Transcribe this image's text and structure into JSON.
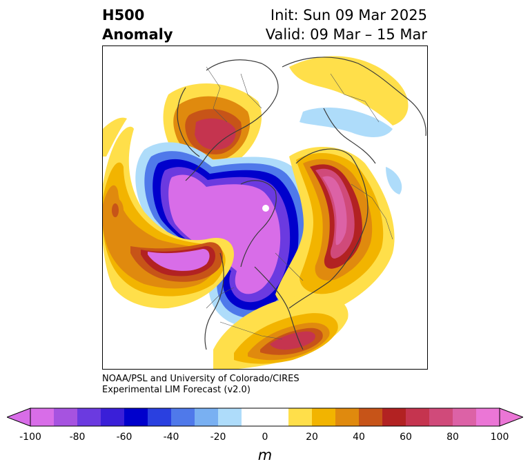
{
  "header": {
    "title_line1": "H500",
    "title_line2": "Anomaly",
    "init_text": "Init: Sun 09 Mar 2025",
    "valid_text": "Valid: 09 Mar – 15 Mar"
  },
  "credit": {
    "line1": "NOAA/PSL and University of Colorado/CIRES",
    "line2": "Experimental LIM Forecast (v2.0)"
  },
  "colorbar": {
    "units": "m",
    "tick_labels": [
      "-100",
      "-80",
      "-60",
      "-40",
      "-20",
      "0",
      "20",
      "40",
      "60",
      "80",
      "100"
    ],
    "colors": [
      "#d86de8",
      "#a653e0",
      "#6b3ae0",
      "#3a1fd8",
      "#0000cc",
      "#2a40e0",
      "#4f79ea",
      "#79b0f2",
      "#aedcfa",
      "#ffffff",
      "#ffffff",
      "#ffdf4a",
      "#f2b400",
      "#e08a0e",
      "#c75418",
      "#b22222",
      "#c5344f",
      "#d04a7a",
      "#dc62a6",
      "#eb76d6"
    ]
  },
  "map": {
    "projection": "north-polar-stereographic",
    "field": "500 hPa geopotential height anomaly",
    "colors": {
      "neg_deep": "#d86de8",
      "neg_1": "#6b3ae0",
      "neg_2": "#0000cc",
      "neg_3": "#4f79ea",
      "neg_light": "#aedcfa",
      "pos_light": "#ffdf4a",
      "pos_1": "#f2b400",
      "pos_2": "#e08a0e",
      "pos_3": "#c75418",
      "pos_4": "#b22222",
      "pos_5": "#c5344f",
      "pos_deep": "#d04a7a"
    }
  }
}
